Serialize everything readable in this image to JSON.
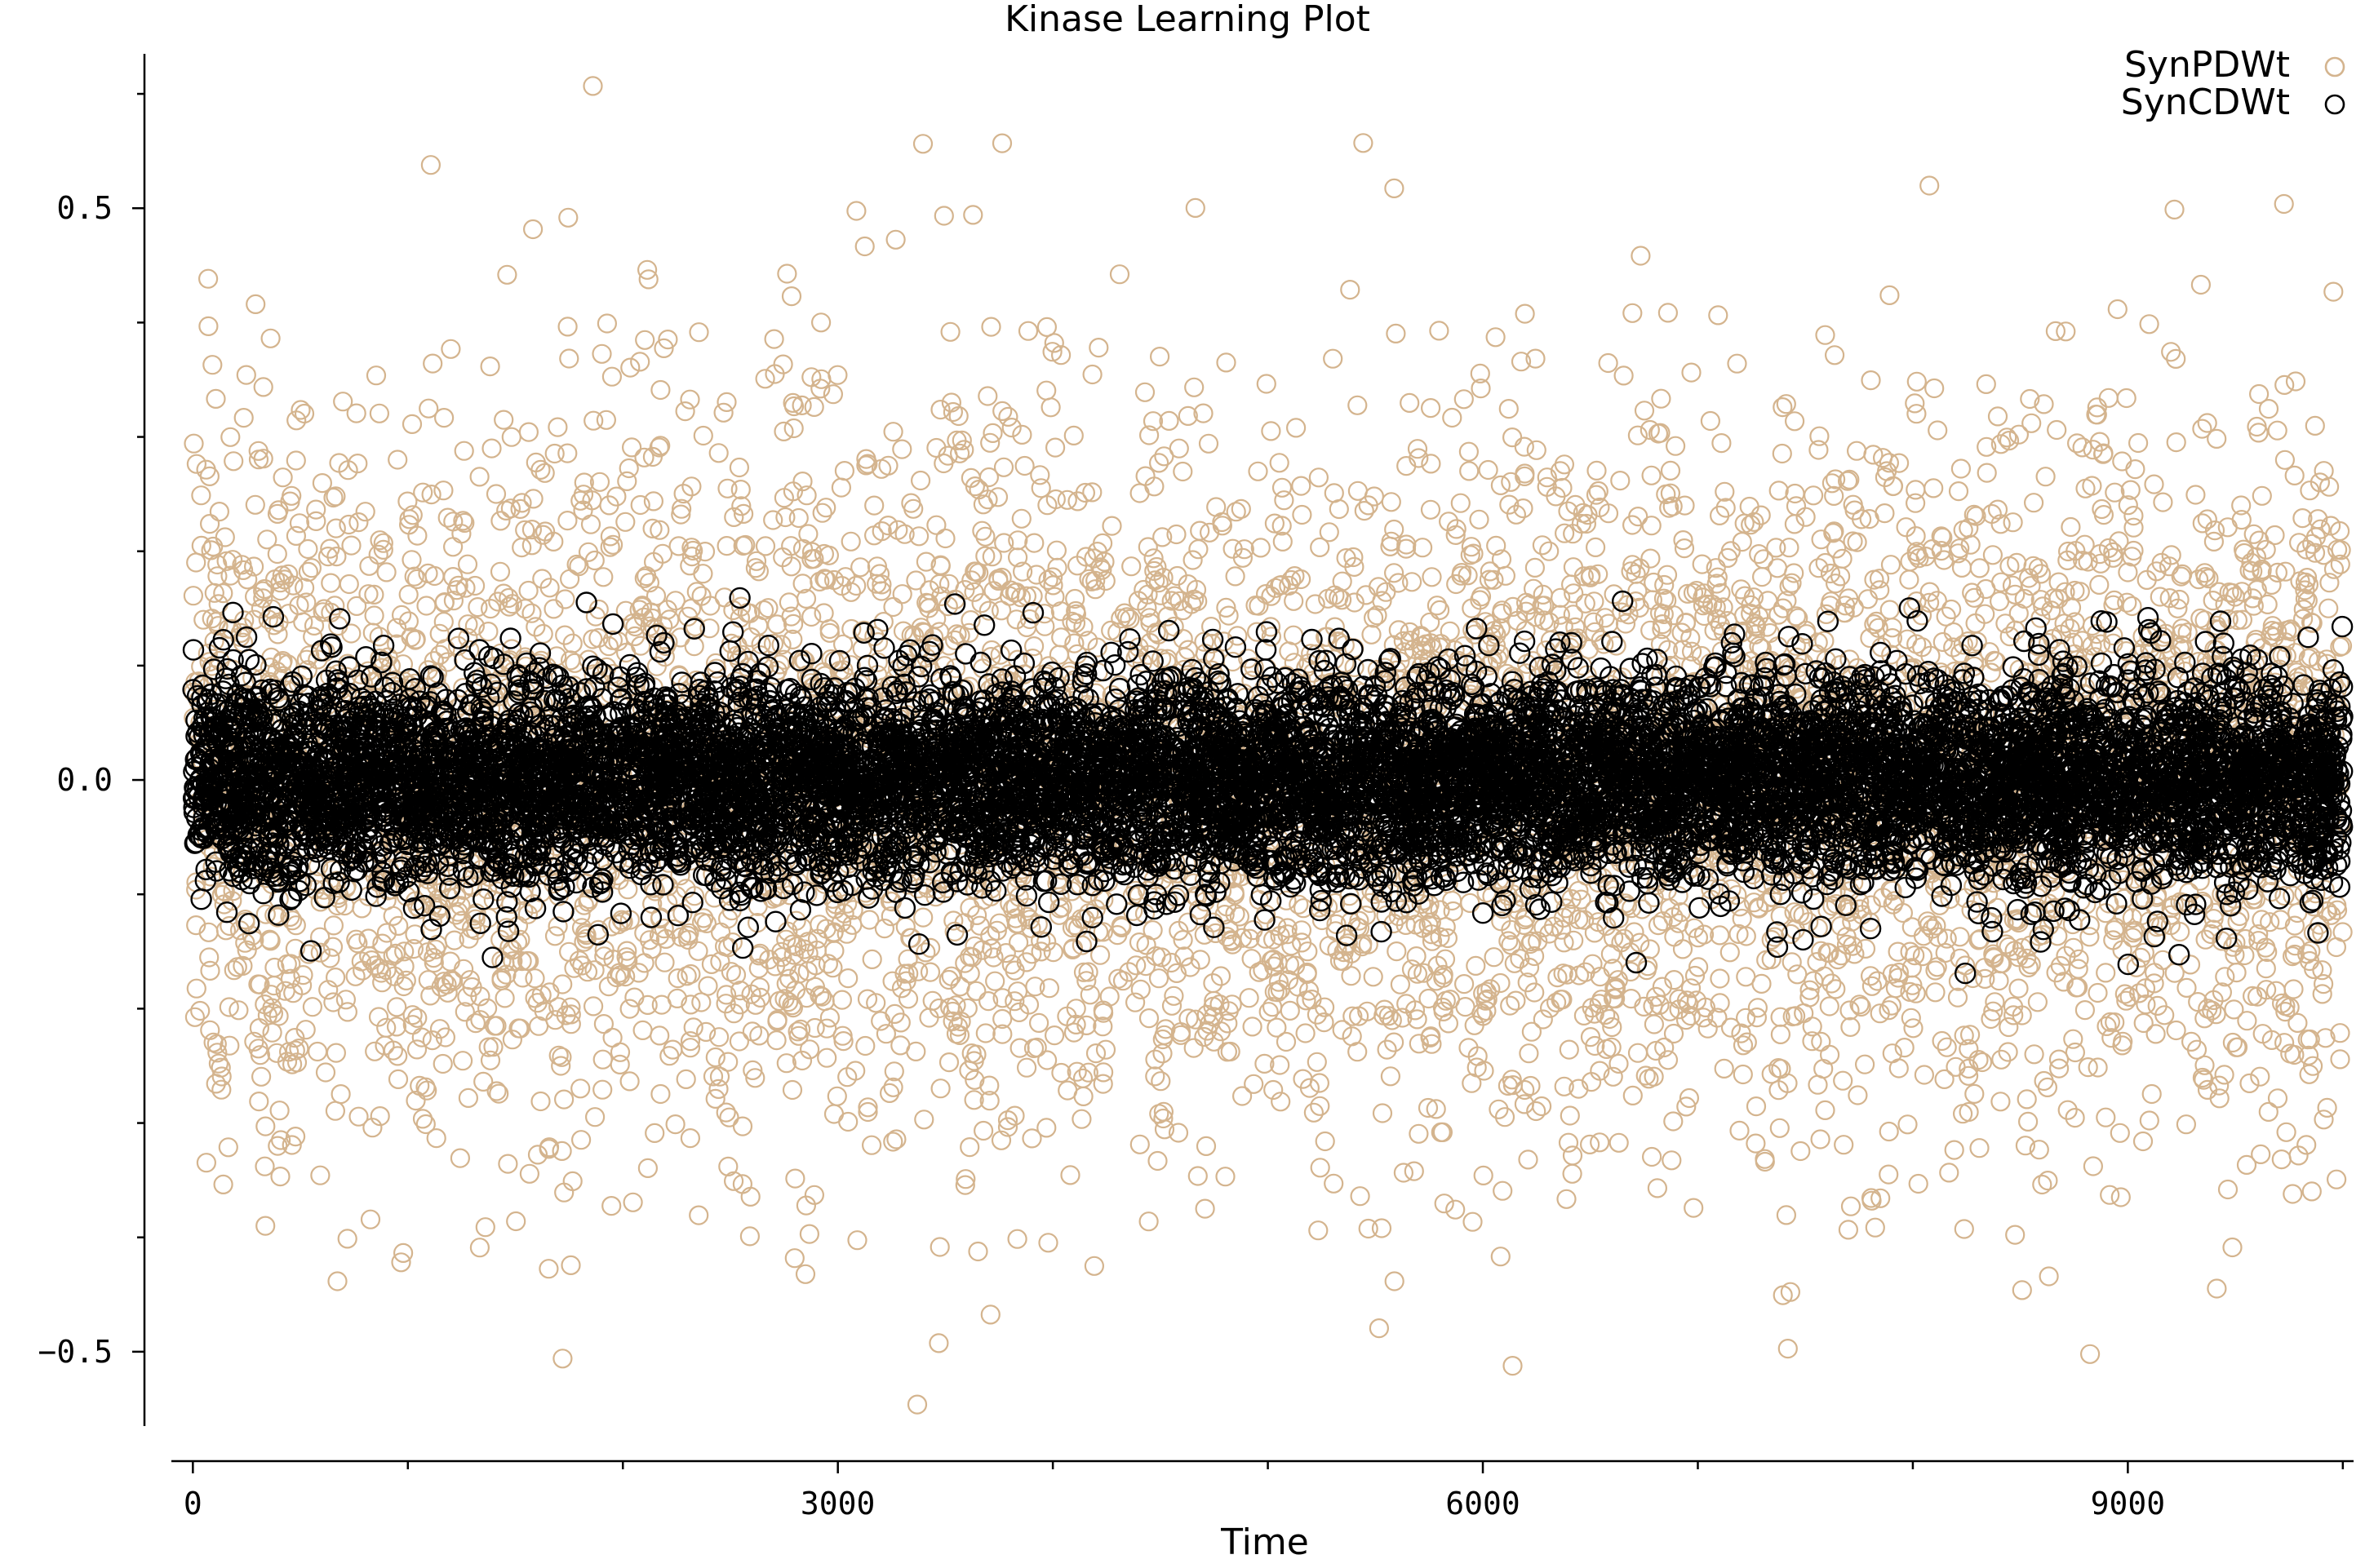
{
  "chart_data": {
    "type": "scatter",
    "title": "Kinase Learning Plot",
    "xlabel": "Time",
    "ylabel": "",
    "xlim": [
      -100,
      10050
    ],
    "ylim": [
      -0.565,
      0.635
    ],
    "x_ticks": [
      0,
      3000,
      6000,
      9000
    ],
    "x_tick_labels": [
      "0",
      "3000",
      "6000",
      "9000"
    ],
    "x_minor_ticks": [
      1000,
      2000,
      4000,
      5000,
      7000,
      8000,
      10000
    ],
    "y_ticks": [
      -0.5,
      0.0,
      0.5
    ],
    "y_tick_labels": [
      "−0.5",
      "0.0",
      "0.5"
    ],
    "y_minor_ticks": [
      -0.4,
      -0.3,
      -0.2,
      -0.1,
      0.1,
      0.2,
      0.3,
      0.4,
      0.6
    ],
    "grid": false,
    "legend_position": "top-right",
    "series": [
      {
        "name": "SynPDWt",
        "color": "#d4b48e",
        "marker": "open-circle",
        "n_points": 6000,
        "x_range": [
          0,
          10000
        ],
        "mean": 0.0,
        "std": 0.16,
        "y_range": [
          -0.55,
          0.63
        ]
      },
      {
        "name": "SynCDWt",
        "color": "#000000",
        "marker": "open-circle",
        "n_points": 10000,
        "x_range": [
          0,
          10000
        ],
        "mean": 0.0,
        "std": 0.045,
        "y_range": [
          -0.22,
          0.16
        ]
      }
    ]
  }
}
